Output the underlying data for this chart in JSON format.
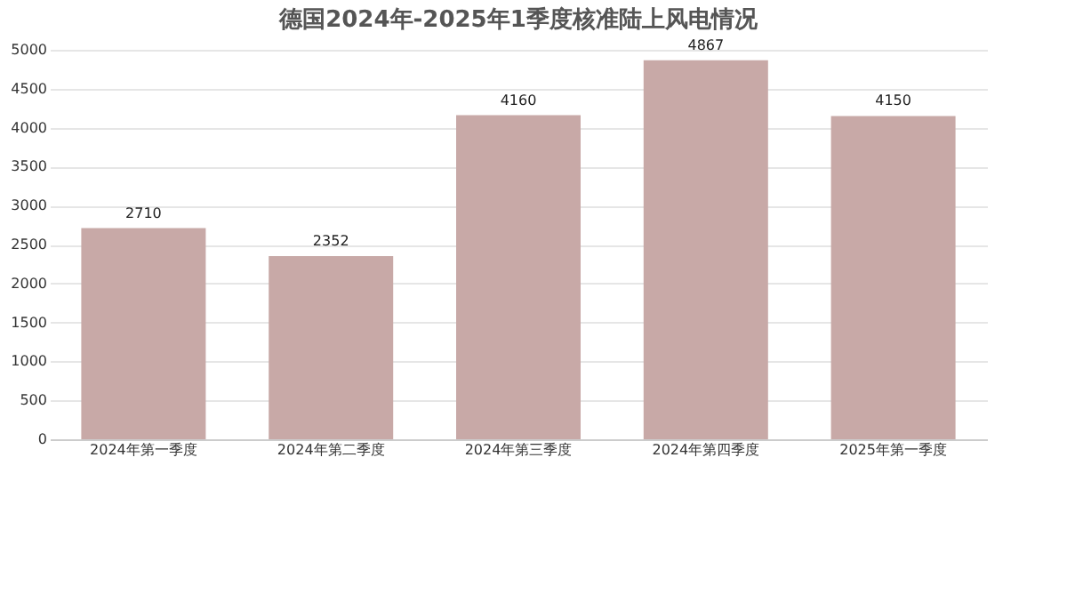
{
  "chart_data": {
    "type": "bar",
    "title": "德国2024年-2025年1季度核准陆上风电情况",
    "categories": [
      "2024年第一季度",
      "2024年第二季度",
      "2024年第三季度",
      "2024年第四季度",
      "2025年第一季度"
    ],
    "values": [
      2710,
      2352,
      4160,
      4867,
      4150
    ],
    "color": "#c8a9a7",
    "ylim": [
      0,
      5000
    ],
    "yticks": [
      0,
      500,
      1000,
      1500,
      2000,
      2500,
      3000,
      3500,
      4000,
      4500,
      5000
    ],
    "grid": "y",
    "data_labels": true
  }
}
